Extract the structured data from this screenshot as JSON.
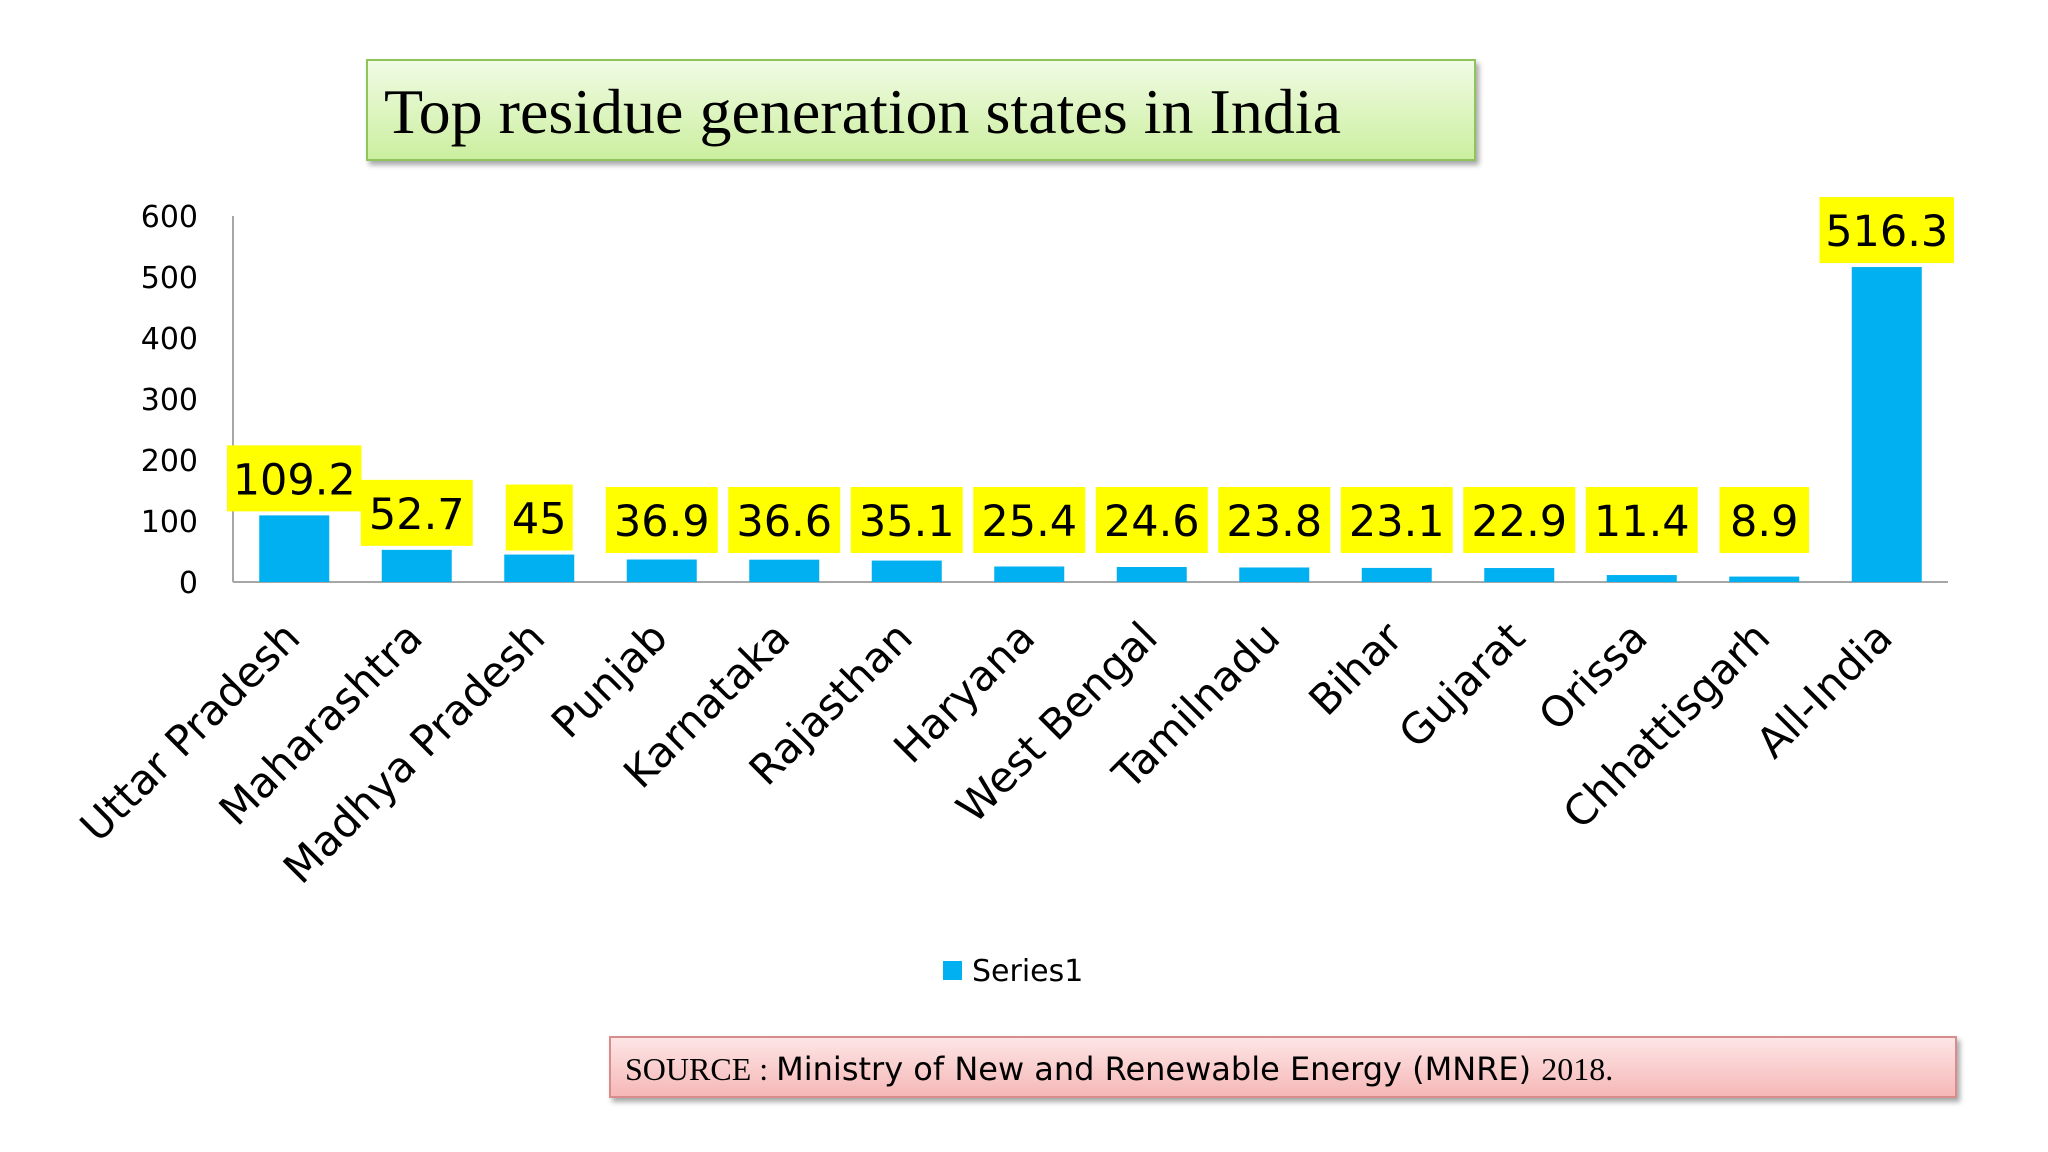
{
  "title": "Top residue generation states in India",
  "source": {
    "prefix": "SOURCE : ",
    "body": "Ministry of New and Renewable Energy (MNRE) ",
    "year": "2018."
  },
  "colors": {
    "bar": "#00b0f0",
    "label_bg": "#ffff00",
    "axis": "#a6a6a6"
  },
  "chart_data": {
    "type": "bar",
    "title": "",
    "xlabel": "",
    "ylabel": "",
    "ylim": [
      0,
      600
    ],
    "yticks": [
      0,
      100,
      200,
      300,
      400,
      500,
      600
    ],
    "grid": false,
    "legend_position": "bottom",
    "categories": [
      "Uttar Pradesh",
      "Maharashtra",
      "Madhya Pradesh",
      "Punjab",
      "Karnataka",
      "Rajasthan",
      "Haryana",
      "West Bengal",
      "Tamilnadu",
      "Bihar",
      "Gujarat",
      "Orissa",
      "Chhattisgarh",
      "All-India"
    ],
    "series": [
      {
        "name": "Series1",
        "values": [
          109.2,
          52.7,
          45,
          36.9,
          36.6,
          35.1,
          25.4,
          24.6,
          23.8,
          23.1,
          22.9,
          11.4,
          8.9,
          516.3
        ],
        "labels": [
          "109.2",
          "52.7",
          "45",
          "36.9",
          "36.6",
          "35.1",
          "25.4",
          "24.6",
          "23.8",
          "23.1",
          "22.9",
          "11.4",
          "8.9",
          "516.3"
        ]
      }
    ]
  }
}
